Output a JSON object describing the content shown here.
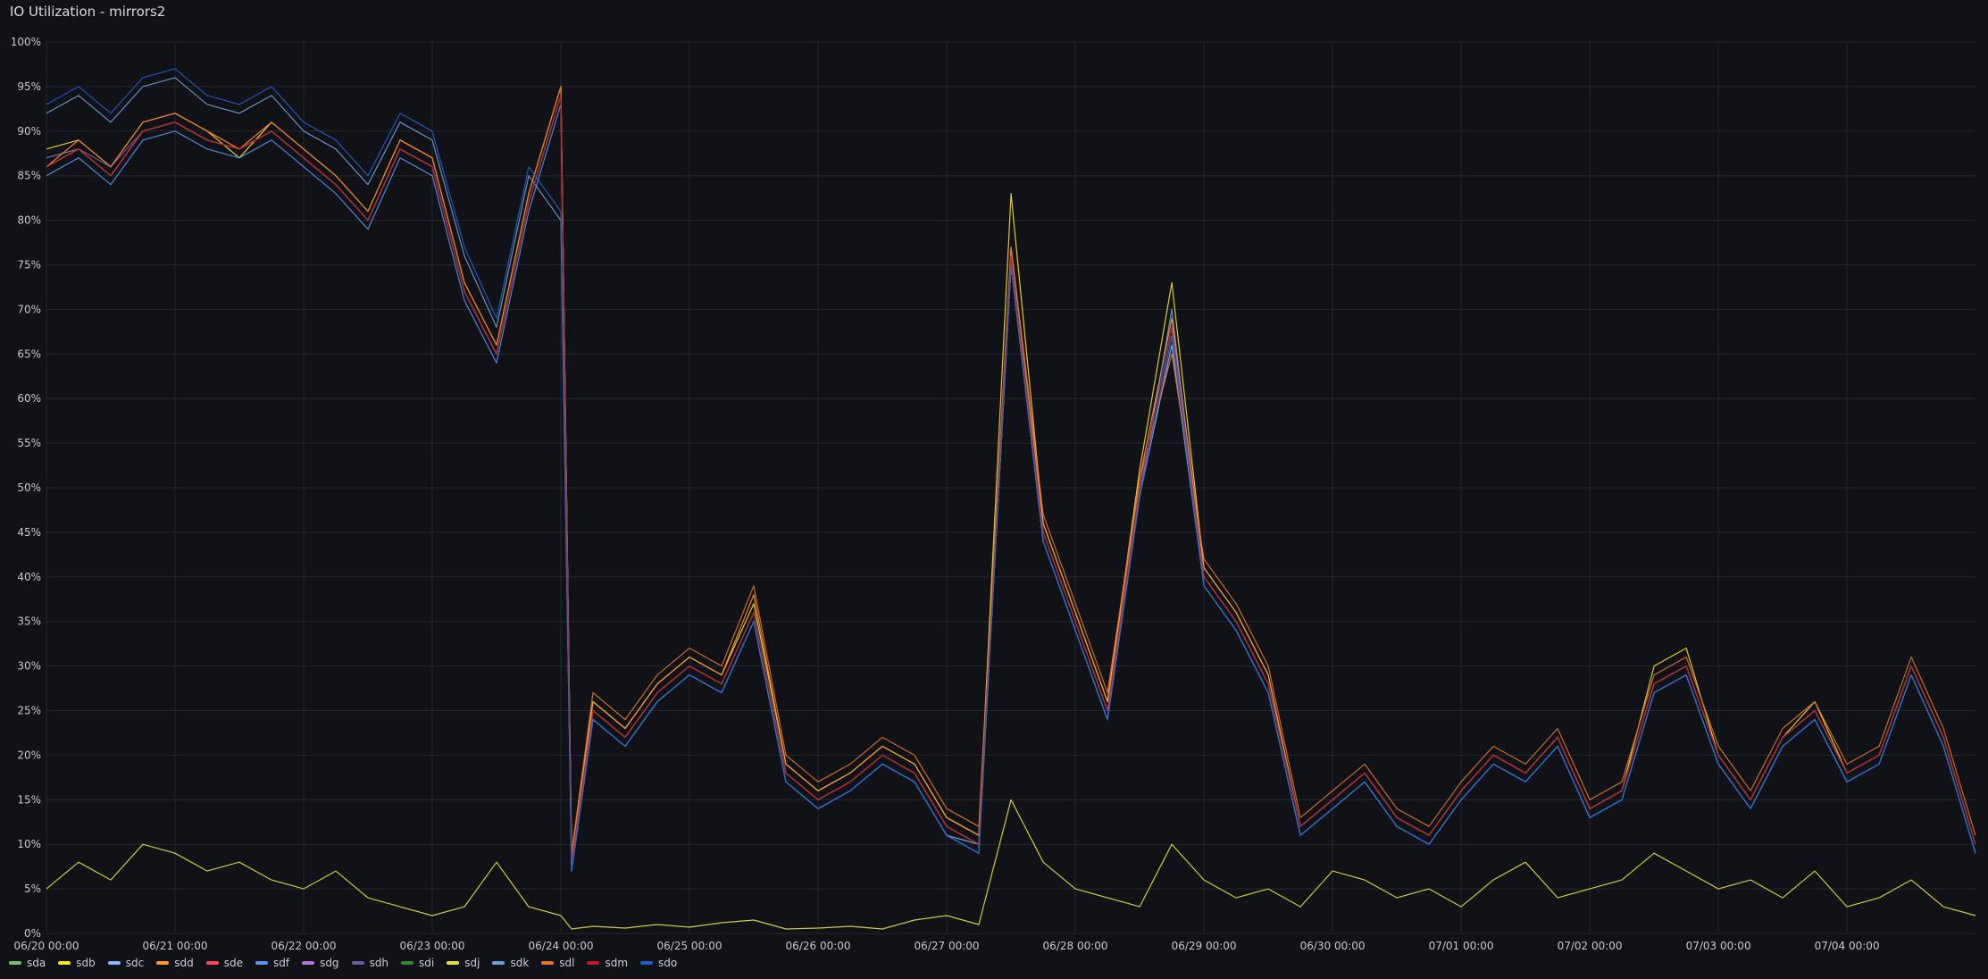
{
  "panel": {
    "title": "IO Utilization - mirrors2"
  },
  "chart_data": {
    "type": "line",
    "title": "IO Utilization - mirrors2",
    "xlabel": "",
    "ylabel": "",
    "x_start": "06/20 00:00",
    "x_end": "07/04 23:59",
    "xticks": [
      "06/20 00:00",
      "06/21 00:00",
      "06/22 00:00",
      "06/23 00:00",
      "06/24 00:00",
      "06/25 00:00",
      "06/26 00:00",
      "06/27 00:00",
      "06/28 00:00",
      "06/29 00:00",
      "06/30 00:00",
      "07/01 00:00",
      "07/02 00:00",
      "07/03 00:00",
      "07/04 00:00"
    ],
    "yticks": [
      "0%",
      "5%",
      "10%",
      "15%",
      "20%",
      "25%",
      "30%",
      "35%",
      "40%",
      "45%",
      "50%",
      "55%",
      "60%",
      "65%",
      "70%",
      "75%",
      "80%",
      "85%",
      "90%",
      "95%",
      "100%"
    ],
    "ylim": [
      0,
      100
    ],
    "grid": true,
    "legend_position": "bottom",
    "x": [
      "06/20 00:00",
      "06/20 06:00",
      "06/20 12:00",
      "06/20 18:00",
      "06/21 00:00",
      "06/21 06:00",
      "06/21 12:00",
      "06/21 18:00",
      "06/22 00:00",
      "06/22 06:00",
      "06/22 12:00",
      "06/22 18:00",
      "06/23 00:00",
      "06/23 06:00",
      "06/23 12:00",
      "06/23 18:00",
      "06/24 00:00",
      "06/24 02:00",
      "06/24 06:00",
      "06/24 12:00",
      "06/24 18:00",
      "06/25 00:00",
      "06/25 06:00",
      "06/25 12:00",
      "06/25 18:00",
      "06/26 00:00",
      "06/26 06:00",
      "06/26 12:00",
      "06/26 18:00",
      "06/27 00:00",
      "06/27 06:00",
      "06/27 12:00",
      "06/27 18:00",
      "06/28 00:00",
      "06/28 06:00",
      "06/28 12:00",
      "06/28 18:00",
      "06/29 00:00",
      "06/29 06:00",
      "06/29 12:00",
      "06/29 18:00",
      "06/30 00:00",
      "06/30 06:00",
      "06/30 12:00",
      "06/30 18:00",
      "07/01 00:00",
      "07/01 06:00",
      "07/01 12:00",
      "07/01 18:00",
      "07/02 00:00",
      "07/02 06:00",
      "07/02 12:00",
      "07/02 18:00",
      "07/03 00:00",
      "07/03 06:00",
      "07/03 12:00",
      "07/03 18:00",
      "07/04 00:00",
      "07/04 06:00",
      "07/04 12:00",
      "07/04 18:00",
      "07/04 23:59"
    ],
    "series": [
      {
        "name": "sda",
        "color": "#73bf69",
        "values": [
          86,
          88,
          85,
          90,
          91,
          89,
          88,
          90,
          87,
          84,
          80,
          88,
          86,
          72,
          65,
          82,
          94,
          8,
          25,
          22,
          27,
          30,
          28,
          36,
          18,
          15,
          17,
          20,
          18,
          12,
          10,
          76,
          45,
          35,
          25,
          50,
          68,
          40,
          35,
          28,
          12,
          15,
          18,
          13,
          11,
          16,
          20,
          18,
          22,
          14,
          16,
          28,
          30,
          20,
          15,
          22,
          25,
          18,
          20,
          30,
          22,
          10
        ]
      },
      {
        "name": "sdb",
        "color": "#fade2a",
        "values": [
          88,
          89,
          86,
          91,
          92,
          90,
          87,
          91,
          88,
          85,
          81,
          89,
          87,
          73,
          66,
          83,
          95,
          9,
          26,
          23,
          28,
          31,
          29,
          37,
          19,
          16,
          18,
          21,
          19,
          13,
          11,
          83,
          46,
          36,
          26,
          52,
          73,
          41,
          36,
          29,
          12,
          15,
          18,
          13,
          11,
          16,
          20,
          18,
          22,
          14,
          16,
          30,
          32,
          20,
          15,
          22,
          26,
          18,
          20,
          30,
          22,
          10
        ]
      },
      {
        "name": "sdc",
        "color": "#8ab8ff",
        "values": [
          87,
          88,
          85,
          90,
          91,
          89,
          88,
          90,
          87,
          84,
          80,
          88,
          86,
          72,
          65,
          82,
          94,
          8,
          24,
          21,
          26,
          29,
          27,
          35,
          17,
          14,
          16,
          19,
          17,
          11,
          10,
          75,
          44,
          34,
          24,
          49,
          66,
          39,
          34,
          27,
          11,
          14,
          17,
          12,
          10,
          15,
          19,
          17,
          21,
          13,
          15,
          27,
          29,
          19,
          14,
          21,
          24,
          17,
          19,
          29,
          21,
          9
        ]
      },
      {
        "name": "sdd",
        "color": "#ff9830",
        "values": [
          86,
          89,
          86,
          91,
          92,
          90,
          88,
          91,
          88,
          85,
          81,
          89,
          87,
          73,
          66,
          83,
          95,
          9,
          26,
          23,
          28,
          31,
          29,
          38,
          19,
          16,
          18,
          21,
          19,
          13,
          11,
          77,
          46,
          36,
          26,
          51,
          69,
          41,
          36,
          29,
          12,
          15,
          18,
          13,
          11,
          16,
          20,
          18,
          22,
          14,
          16,
          28,
          30,
          20,
          15,
          22,
          25,
          18,
          20,
          30,
          22,
          10
        ]
      },
      {
        "name": "sde",
        "color": "#f2495c",
        "values": [
          86,
          88,
          85,
          90,
          91,
          89,
          88,
          90,
          87,
          84,
          80,
          88,
          86,
          72,
          65,
          82,
          94,
          8,
          25,
          22,
          27,
          30,
          28,
          36,
          18,
          15,
          17,
          20,
          18,
          12,
          10,
          76,
          45,
          35,
          25,
          50,
          68,
          40,
          35,
          28,
          12,
          15,
          18,
          13,
          11,
          16,
          20,
          18,
          22,
          14,
          16,
          28,
          30,
          20,
          15,
          22,
          25,
          18,
          20,
          30,
          22,
          10
        ]
      },
      {
        "name": "sdf",
        "color": "#5794f2",
        "values": [
          85,
          87,
          84,
          89,
          90,
          88,
          87,
          89,
          86,
          83,
          79,
          87,
          85,
          71,
          64,
          81,
          93,
          7,
          24,
          21,
          26,
          29,
          27,
          35,
          17,
          14,
          16,
          19,
          17,
          11,
          9,
          75,
          44,
          34,
          24,
          49,
          67,
          39,
          34,
          27,
          11,
          14,
          17,
          12,
          10,
          15,
          19,
          17,
          21,
          13,
          15,
          27,
          29,
          19,
          14,
          21,
          24,
          17,
          19,
          29,
          21,
          9
        ]
      },
      {
        "name": "sdg",
        "color": "#b877d9",
        "values": [
          86,
          88,
          85,
          90,
          91,
          89,
          88,
          90,
          87,
          84,
          80,
          88,
          86,
          72,
          65,
          82,
          94,
          8,
          25,
          22,
          27,
          30,
          28,
          36,
          18,
          15,
          17,
          20,
          18,
          12,
          10,
          76,
          45,
          35,
          25,
          50,
          68,
          40,
          35,
          28,
          12,
          15,
          18,
          13,
          11,
          16,
          20,
          18,
          22,
          14,
          16,
          28,
          30,
          20,
          15,
          22,
          25,
          18,
          20,
          30,
          22,
          10
        ]
      },
      {
        "name": "sdh",
        "color": "#705da0",
        "values": [
          87,
          88,
          86,
          90,
          91,
          89,
          88,
          90,
          87,
          84,
          80,
          88,
          86,
          72,
          65,
          82,
          94,
          8,
          25,
          22,
          27,
          30,
          28,
          36,
          18,
          15,
          17,
          20,
          18,
          12,
          10,
          76,
          45,
          35,
          25,
          50,
          68,
          40,
          35,
          28,
          12,
          15,
          18,
          13,
          11,
          16,
          20,
          18,
          22,
          14,
          16,
          28,
          30,
          20,
          15,
          22,
          25,
          18,
          20,
          30,
          22,
          10
        ]
      },
      {
        "name": "sdi",
        "color": "#37872d",
        "values": [
          86,
          88,
          85,
          90,
          91,
          89,
          88,
          90,
          87,
          84,
          80,
          88,
          86,
          72,
          65,
          82,
          94,
          8,
          25,
          22,
          27,
          30,
          28,
          36,
          18,
          15,
          17,
          20,
          18,
          12,
          10,
          76,
          45,
          35,
          25,
          50,
          68,
          40,
          35,
          28,
          12,
          15,
          18,
          13,
          11,
          16,
          20,
          18,
          22,
          14,
          16,
          28,
          30,
          20,
          15,
          22,
          25,
          18,
          20,
          30,
          22,
          10
        ]
      },
      {
        "name": "sdj",
        "color": "#e0e045",
        "values": [
          5,
          8,
          6,
          10,
          9,
          7,
          8,
          6,
          5,
          7,
          4,
          3,
          2,
          3,
          8,
          3,
          2,
          0.5,
          0.8,
          0.6,
          1,
          0.7,
          1.2,
          1.5,
          0.5,
          0.6,
          0.8,
          0.5,
          1.5,
          2,
          1,
          15,
          8,
          5,
          4,
          3,
          10,
          6,
          4,
          5,
          3,
          7,
          6,
          4,
          5,
          3,
          6,
          8,
          4,
          5,
          6,
          9,
          7,
          5,
          6,
          4,
          7,
          3,
          4,
          6,
          3,
          2
        ]
      },
      {
        "name": "sdk",
        "color": "#6e9fd6",
        "values": [
          92,
          94,
          91,
          95,
          96,
          93,
          92,
          94,
          90,
          88,
          84,
          91,
          89,
          76,
          68,
          85,
          80,
          7,
          24,
          21,
          26,
          29,
          27,
          35,
          17,
          14,
          16,
          19,
          17,
          11,
          9,
          75,
          44,
          34,
          24,
          49,
          70,
          39,
          34,
          27,
          11,
          14,
          17,
          12,
          10,
          15,
          19,
          17,
          21,
          13,
          15,
          27,
          29,
          19,
          14,
          21,
          24,
          17,
          19,
          29,
          21,
          9
        ]
      },
      {
        "name": "sdl",
        "color": "#e0752d",
        "values": [
          86,
          89,
          86,
          91,
          92,
          90,
          88,
          91,
          88,
          85,
          81,
          89,
          87,
          73,
          66,
          83,
          95,
          9,
          27,
          24,
          29,
          32,
          30,
          39,
          20,
          17,
          19,
          22,
          20,
          14,
          12,
          77,
          47,
          37,
          27,
          51,
          65,
          42,
          37,
          30,
          13,
          16,
          19,
          14,
          12,
          17,
          21,
          19,
          23,
          15,
          17,
          29,
          31,
          21,
          16,
          23,
          26,
          19,
          21,
          31,
          23,
          11
        ]
      },
      {
        "name": "sdm",
        "color": "#c4162a",
        "values": [
          86,
          88,
          85,
          90,
          91,
          89,
          88,
          90,
          87,
          84,
          80,
          88,
          86,
          72,
          65,
          82,
          94,
          8,
          25,
          22,
          27,
          30,
          28,
          36,
          18,
          15,
          17,
          20,
          18,
          12,
          10,
          76,
          45,
          35,
          25,
          50,
          68,
          40,
          35,
          28,
          12,
          15,
          18,
          13,
          11,
          16,
          20,
          18,
          22,
          14,
          16,
          28,
          30,
          20,
          15,
          22,
          25,
          18,
          20,
          30,
          22,
          10
        ]
      },
      {
        "name": "sdo",
        "color": "#1f60c4",
        "values": [
          93,
          95,
          92,
          96,
          97,
          94,
          93,
          95,
          91,
          89,
          85,
          92,
          90,
          77,
          69,
          86,
          81,
          7,
          24,
          21,
          26,
          29,
          27,
          35,
          17,
          14,
          16,
          19,
          17,
          11,
          9,
          75,
          44,
          34,
          24,
          49,
          67,
          39,
          34,
          27,
          11,
          14,
          17,
          12,
          10,
          15,
          19,
          17,
          21,
          13,
          15,
          27,
          29,
          19,
          14,
          21,
          24,
          17,
          19,
          29,
          21,
          9
        ]
      }
    ]
  }
}
